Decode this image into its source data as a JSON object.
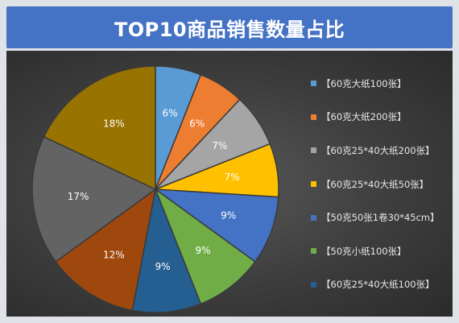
{
  "chart_data": {
    "type": "pie",
    "title": "TOP10商品销售数量占比",
    "categories": [
      "【60克大纸100张】",
      "【60克大纸200张】",
      "【60克25*40大纸200张】",
      "【60克25*40大纸50张】",
      "【50克50张1卷30*45cm】",
      "【50克小纸100张】",
      "【60克25*40大纸100张】",
      "",
      "",
      ""
    ],
    "values": [
      6,
      6,
      7,
      7,
      9,
      9,
      9,
      12,
      17,
      18
    ],
    "labels": [
      "6%",
      "6%",
      "7%",
      "7%",
      "9%",
      "9%",
      "9%",
      "12%",
      "17%",
      "18%"
    ],
    "colors": [
      "#5b9bd5",
      "#ed7d31",
      "#a5a5a5",
      "#ffc000",
      "#4472c4",
      "#70ad47",
      "#255e91",
      "#9e480e",
      "#636363",
      "#997300"
    ],
    "legend_count": 7,
    "legend_position": "right"
  }
}
